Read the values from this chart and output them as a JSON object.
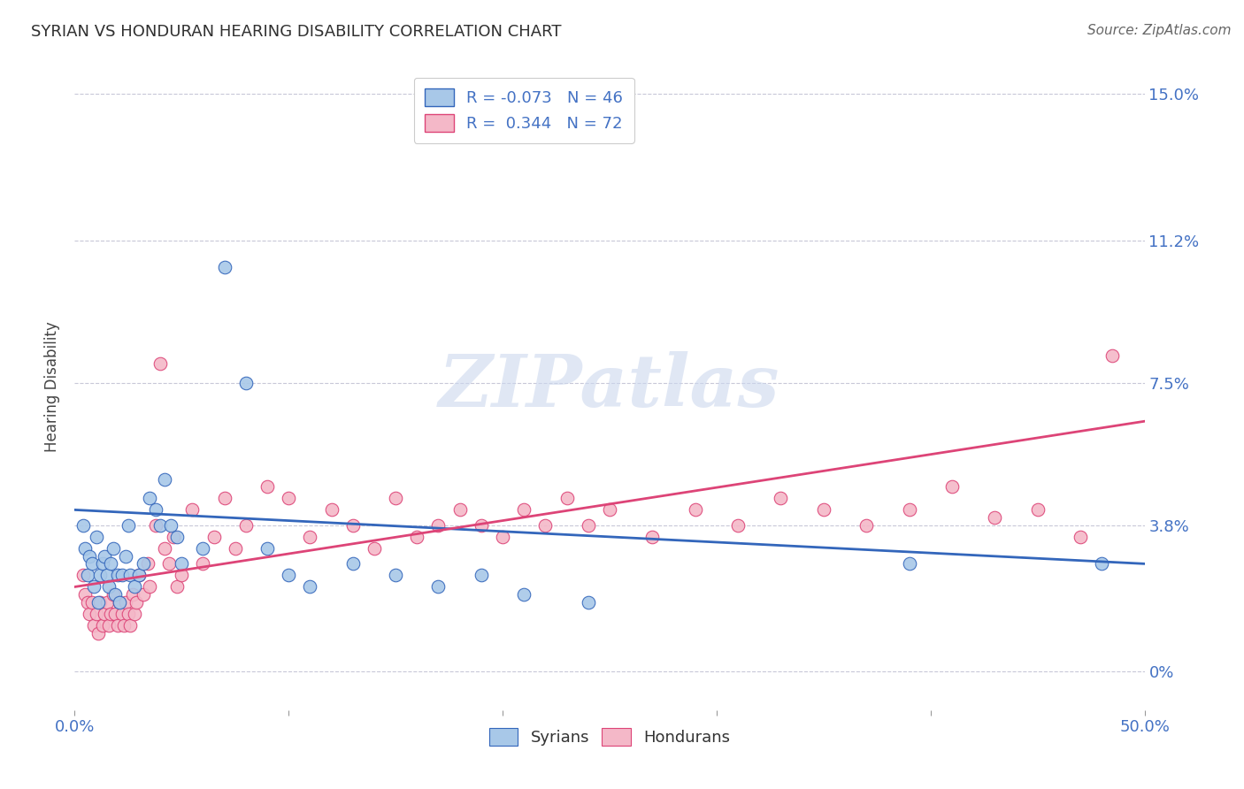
{
  "title": "SYRIAN VS HONDURAN HEARING DISABILITY CORRELATION CHART",
  "source_text": "Source: ZipAtlas.com",
  "ylabel": "Hearing Disability",
  "xlim": [
    0.0,
    0.5
  ],
  "ylim": [
    -0.01,
    0.158
  ],
  "yticks": [
    0.0,
    0.038,
    0.075,
    0.112,
    0.15
  ],
  "ytick_labels": [
    "0%",
    "3.8%",
    "7.5%",
    "11.2%",
    "15.0%"
  ],
  "xtick_vals": [
    0.0,
    0.1,
    0.2,
    0.3,
    0.4,
    0.5
  ],
  "xtick_labels": [
    "0.0%",
    "",
    "",
    "",
    "",
    "50.0%"
  ],
  "syrian_color": "#a8c8e8",
  "honduran_color": "#f4b8c8",
  "syrian_line_color": "#3366bb",
  "honduran_line_color": "#dd4477",
  "watermark_text": "ZIPatlas",
  "background_color": "#ffffff",
  "grid_color": "#c8c8d8",
  "title_color": "#303030",
  "tick_color": "#4472c4",
  "syrian_x": [
    0.004,
    0.005,
    0.006,
    0.007,
    0.008,
    0.009,
    0.01,
    0.011,
    0.012,
    0.013,
    0.014,
    0.015,
    0.016,
    0.017,
    0.018,
    0.019,
    0.02,
    0.021,
    0.022,
    0.024,
    0.025,
    0.026,
    0.028,
    0.03,
    0.032,
    0.035,
    0.038,
    0.04,
    0.042,
    0.045,
    0.048,
    0.05,
    0.06,
    0.07,
    0.08,
    0.09,
    0.1,
    0.11,
    0.13,
    0.15,
    0.17,
    0.19,
    0.21,
    0.24,
    0.39,
    0.48
  ],
  "syrian_y": [
    0.038,
    0.032,
    0.025,
    0.03,
    0.028,
    0.022,
    0.035,
    0.018,
    0.025,
    0.028,
    0.03,
    0.025,
    0.022,
    0.028,
    0.032,
    0.02,
    0.025,
    0.018,
    0.025,
    0.03,
    0.038,
    0.025,
    0.022,
    0.025,
    0.028,
    0.045,
    0.042,
    0.038,
    0.05,
    0.038,
    0.035,
    0.028,
    0.032,
    0.105,
    0.075,
    0.032,
    0.025,
    0.022,
    0.028,
    0.025,
    0.022,
    0.025,
    0.02,
    0.018,
    0.028,
    0.028
  ],
  "honduran_x": [
    0.004,
    0.005,
    0.006,
    0.007,
    0.008,
    0.009,
    0.01,
    0.011,
    0.012,
    0.013,
    0.014,
    0.015,
    0.016,
    0.017,
    0.018,
    0.019,
    0.02,
    0.021,
    0.022,
    0.023,
    0.024,
    0.025,
    0.026,
    0.027,
    0.028,
    0.029,
    0.03,
    0.032,
    0.034,
    0.035,
    0.038,
    0.04,
    0.042,
    0.044,
    0.046,
    0.048,
    0.05,
    0.055,
    0.06,
    0.065,
    0.07,
    0.075,
    0.08,
    0.09,
    0.1,
    0.11,
    0.12,
    0.13,
    0.14,
    0.15,
    0.16,
    0.17,
    0.18,
    0.19,
    0.2,
    0.21,
    0.22,
    0.23,
    0.24,
    0.25,
    0.27,
    0.29,
    0.31,
    0.33,
    0.35,
    0.37,
    0.39,
    0.41,
    0.43,
    0.45,
    0.47,
    0.485
  ],
  "honduran_y": [
    0.025,
    0.02,
    0.018,
    0.015,
    0.018,
    0.012,
    0.015,
    0.01,
    0.018,
    0.012,
    0.015,
    0.018,
    0.012,
    0.015,
    0.02,
    0.015,
    0.012,
    0.018,
    0.015,
    0.012,
    0.018,
    0.015,
    0.012,
    0.02,
    0.015,
    0.018,
    0.025,
    0.02,
    0.028,
    0.022,
    0.038,
    0.08,
    0.032,
    0.028,
    0.035,
    0.022,
    0.025,
    0.042,
    0.028,
    0.035,
    0.045,
    0.032,
    0.038,
    0.048,
    0.045,
    0.035,
    0.042,
    0.038,
    0.032,
    0.045,
    0.035,
    0.038,
    0.042,
    0.038,
    0.035,
    0.042,
    0.038,
    0.045,
    0.038,
    0.042,
    0.035,
    0.042,
    0.038,
    0.045,
    0.042,
    0.038,
    0.042,
    0.048,
    0.04,
    0.042,
    0.035,
    0.082
  ],
  "legend1_label_r": "R = -0.073",
  "legend1_label_n": "N = 46",
  "legend2_label_r": "R =  0.344",
  "legend2_label_n": "N = 72",
  "bottom_legend_syrians": "Syrians",
  "bottom_legend_hondurans": "Hondurans"
}
